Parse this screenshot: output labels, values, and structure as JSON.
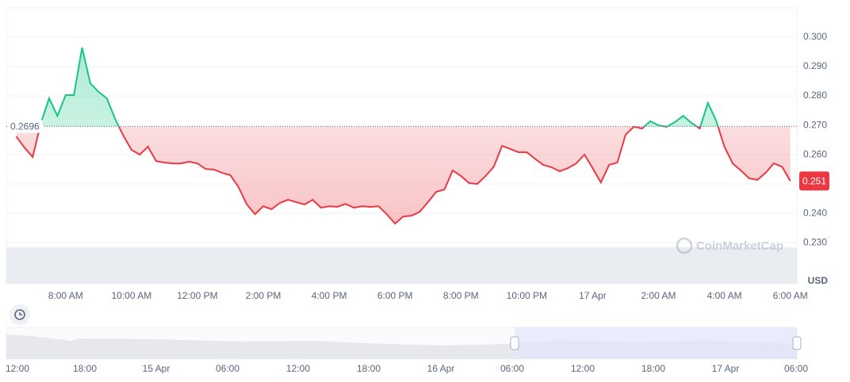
{
  "chart_data": {
    "type": "line",
    "x": [
      6.5,
      6.75,
      7,
      7.25,
      7.5,
      7.75,
      8,
      8.25,
      8.5,
      8.75,
      9,
      9.25,
      9.5,
      9.75,
      10,
      10.25,
      10.5,
      10.75,
      11,
      11.25,
      11.5,
      11.75,
      12,
      12.25,
      12.5,
      12.75,
      13,
      13.25,
      13.5,
      13.75,
      14,
      14.25,
      14.5,
      14.75,
      15,
      15.25,
      15.5,
      15.75,
      16,
      16.25,
      16.5,
      16.75,
      17,
      17.25,
      17.5,
      17.75,
      18,
      18.25,
      18.5,
      18.75,
      19,
      19.25,
      19.5,
      19.75,
      20,
      20.25,
      20.5,
      20.75,
      21,
      21.25,
      21.5,
      21.75,
      22,
      22.25,
      22.5,
      22.75,
      23,
      23.25,
      23.5,
      23.75,
      24,
      24.25,
      24.5,
      24.75,
      25,
      25.25,
      25.5,
      25.75,
      26,
      26.25,
      26.5,
      26.75,
      27,
      27.25,
      27.5,
      27.75,
      28,
      28.25,
      28.5,
      28.75,
      29,
      29.25,
      29.5,
      29.75,
      30
    ],
    "values": [
      0.2662,
      0.2624,
      0.2592,
      0.2708,
      0.2792,
      0.2732,
      0.2803,
      0.2803,
      0.2965,
      0.2843,
      0.2814,
      0.2792,
      0.2722,
      0.2665,
      0.2616,
      0.26,
      0.2627,
      0.2578,
      0.2573,
      0.257,
      0.257,
      0.2576,
      0.257,
      0.2551,
      0.2549,
      0.2538,
      0.253,
      0.2489,
      0.243,
      0.2397,
      0.2424,
      0.2414,
      0.2435,
      0.2446,
      0.2438,
      0.243,
      0.2446,
      0.2419,
      0.2424,
      0.2422,
      0.2432,
      0.2419,
      0.2424,
      0.2422,
      0.2424,
      0.2397,
      0.2365,
      0.2389,
      0.2392,
      0.2405,
      0.2438,
      0.2473,
      0.2481,
      0.2546,
      0.2527,
      0.2503,
      0.25,
      0.2527,
      0.2559,
      0.263,
      0.2619,
      0.2608,
      0.2608,
      0.2586,
      0.2565,
      0.2557,
      0.2543,
      0.2554,
      0.257,
      0.26,
      0.2554,
      0.2505,
      0.2565,
      0.2573,
      0.2668,
      0.2695,
      0.2689,
      0.2714,
      0.27,
      0.2695,
      0.2711,
      0.2732,
      0.2708,
      0.2689,
      0.2776,
      0.2716,
      0.2627,
      0.257,
      0.2546,
      0.2519,
      0.2514,
      0.2538,
      0.257,
      0.2559,
      0.251
    ],
    "up_color": "#16c784",
    "down_color": "#ea3943",
    "baseline": 0.2696,
    "current_price": 0.251,
    "xlim": [
      6.2,
      30.2
    ],
    "xticks": [
      {
        "value": 8,
        "label": "8:00 AM"
      },
      {
        "value": 10,
        "label": "10:00 AM"
      },
      {
        "value": 12,
        "label": "12:00 PM"
      },
      {
        "value": 14,
        "label": "2:00 PM"
      },
      {
        "value": 16,
        "label": "4:00 PM"
      },
      {
        "value": 18,
        "label": "6:00 PM"
      },
      {
        "value": 20,
        "label": "8:00 PM"
      },
      {
        "value": 22,
        "label": "10:00 PM"
      },
      {
        "value": 24,
        "label": "17 Apr"
      },
      {
        "value": 26,
        "label": "2:00 AM"
      },
      {
        "value": 28,
        "label": "4:00 AM"
      },
      {
        "value": 30,
        "label": "6:00 AM"
      }
    ],
    "ylim": [
      0.216,
      0.31
    ],
    "yticks": [
      {
        "value": 0.23,
        "label": "0.230"
      },
      {
        "value": 0.24,
        "label": "0.240"
      },
      {
        "value": 0.25,
        "label": "0.250"
      },
      {
        "value": 0.26,
        "label": "0.260"
      },
      {
        "value": 0.27,
        "label": "0.270"
      },
      {
        "value": 0.28,
        "label": "0.280"
      },
      {
        "value": 0.29,
        "label": "0.290"
      },
      {
        "value": 0.3,
        "label": "0.300"
      }
    ],
    "grid": true,
    "y_axis_label": "USD",
    "watermark": "CoinMarketCap",
    "navigator_labels": [
      "12:00",
      "18:00",
      "15 Apr",
      "06:00",
      "12:00",
      "18:00",
      "16 Apr",
      "06:00",
      "12:00",
      "18:00",
      "17 Apr",
      "06:00"
    ]
  }
}
